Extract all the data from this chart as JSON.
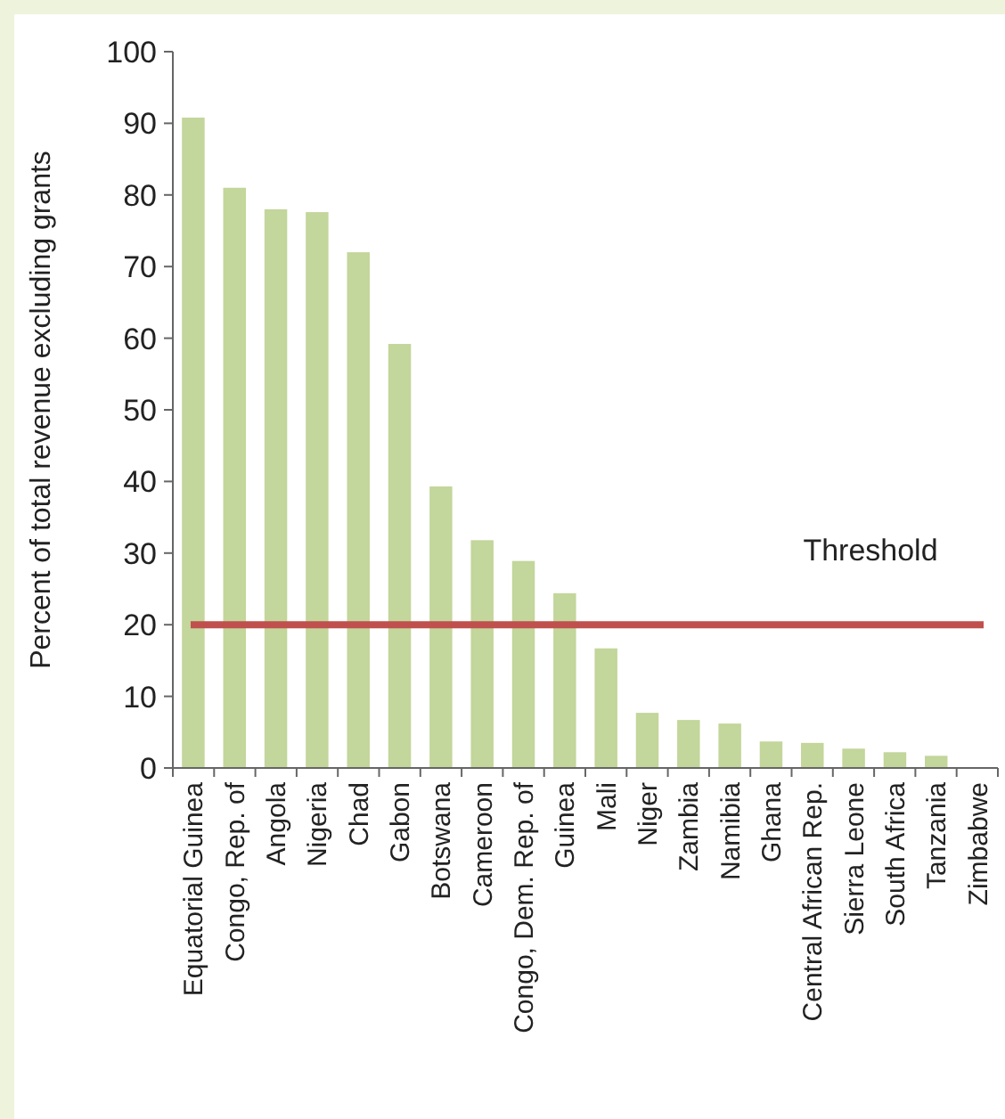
{
  "chart_data": {
    "type": "bar",
    "ylabel": "Percent of total revenue excluding grants",
    "categories": [
      "Equatorial Guinea",
      "Congo, Rep. of",
      "Angola",
      "Nigeria",
      "Chad",
      "Gabon",
      "Botswana",
      "Cameroon",
      "Congo, Dem. Rep. of",
      "Guinea",
      "Mali",
      "Niger",
      "Zambia",
      "Namibia",
      "Ghana",
      "Central African Rep.",
      "Sierra Leone",
      "South Africa",
      "Tanzania",
      "Zimbabwe"
    ],
    "values": [
      90.8,
      81,
      78,
      77.6,
      72,
      59.2,
      39.3,
      31.8,
      28.9,
      24.4,
      16.7,
      7.7,
      6.7,
      6.2,
      3.7,
      3.5,
      2.7,
      2.2,
      1.7,
      0
    ],
    "color": "#c3d69b",
    "ylim": [
      0,
      100
    ],
    "yticks": [
      0,
      10,
      20,
      30,
      40,
      50,
      60,
      70,
      80,
      90,
      100
    ],
    "ref_lines": [
      {
        "axis": "y",
        "value": 20,
        "label": "Threshold",
        "color": "#c0504d"
      }
    ]
  }
}
